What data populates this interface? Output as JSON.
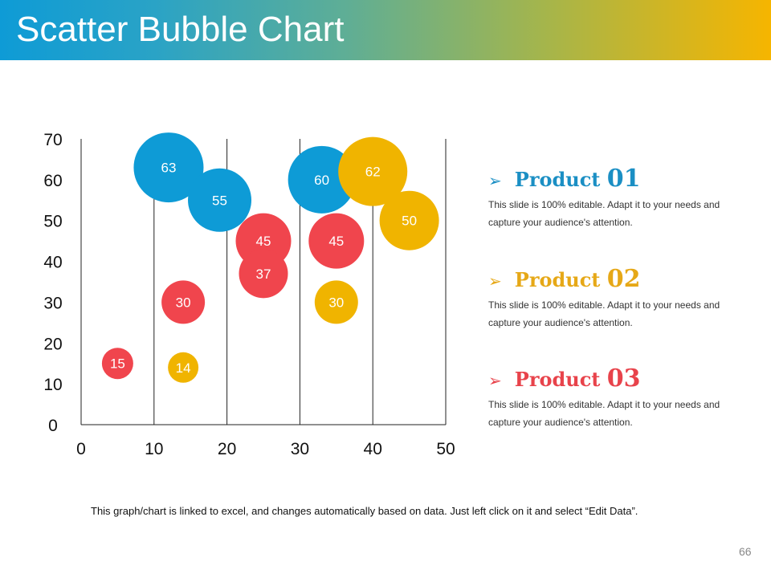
{
  "title": "Scatter Bubble Chart",
  "chart_data": {
    "type": "scatter",
    "variant": "bubble",
    "xlim": [
      0,
      50
    ],
    "ylim": [
      0,
      70
    ],
    "x_ticks": [
      "0",
      "10",
      "20",
      "30",
      "40",
      "50"
    ],
    "y_ticks": [
      "0",
      "10",
      "20",
      "30",
      "40",
      "50",
      "60",
      "70"
    ],
    "grid": "vertical",
    "series": [
      {
        "name": "Product 01",
        "color": "#0e9bd6",
        "points": [
          {
            "x": 12,
            "y": 63,
            "label": "63"
          },
          {
            "x": 19,
            "y": 55,
            "label": "55"
          },
          {
            "x": 33,
            "y": 60,
            "label": "60"
          }
        ]
      },
      {
        "name": "Product 02",
        "color": "#f0b400",
        "points": [
          {
            "x": 14,
            "y": 14,
            "label": "14"
          },
          {
            "x": 35,
            "y": 30,
            "label": "30"
          },
          {
            "x": 40,
            "y": 62,
            "label": "62"
          },
          {
            "x": 45,
            "y": 50,
            "label": "50"
          }
        ]
      },
      {
        "name": "Product 03",
        "color": "#f0454d",
        "points": [
          {
            "x": 5,
            "y": 15,
            "label": "15"
          },
          {
            "x": 14,
            "y": 30,
            "label": "30"
          },
          {
            "x": 25,
            "y": 45,
            "label": "45"
          },
          {
            "x": 25,
            "y": 37,
            "label": "37"
          },
          {
            "x": 35,
            "y": 45,
            "label": "45"
          }
        ]
      }
    ]
  },
  "legend": {
    "items": [
      {
        "name": "Product ",
        "num": "01",
        "color": "#1b8fc4",
        "description": "This slide is 100% editable. Adapt it to your needs and capture your audience's attention."
      },
      {
        "name": "Product ",
        "num": "02",
        "color": "#e6a817",
        "description": "This slide is 100% editable. Adapt it to your needs and capture your audience's attention."
      },
      {
        "name": "Product ",
        "num": "03",
        "color": "#e8434b",
        "description": "This slide is 100% editable. Adapt it to your needs and capture your audience's attention."
      }
    ]
  },
  "footnote": "This graph/chart is linked to excel, and changes automatically based on data. Just left click on it and select “Edit Data”.",
  "page_number": "66"
}
